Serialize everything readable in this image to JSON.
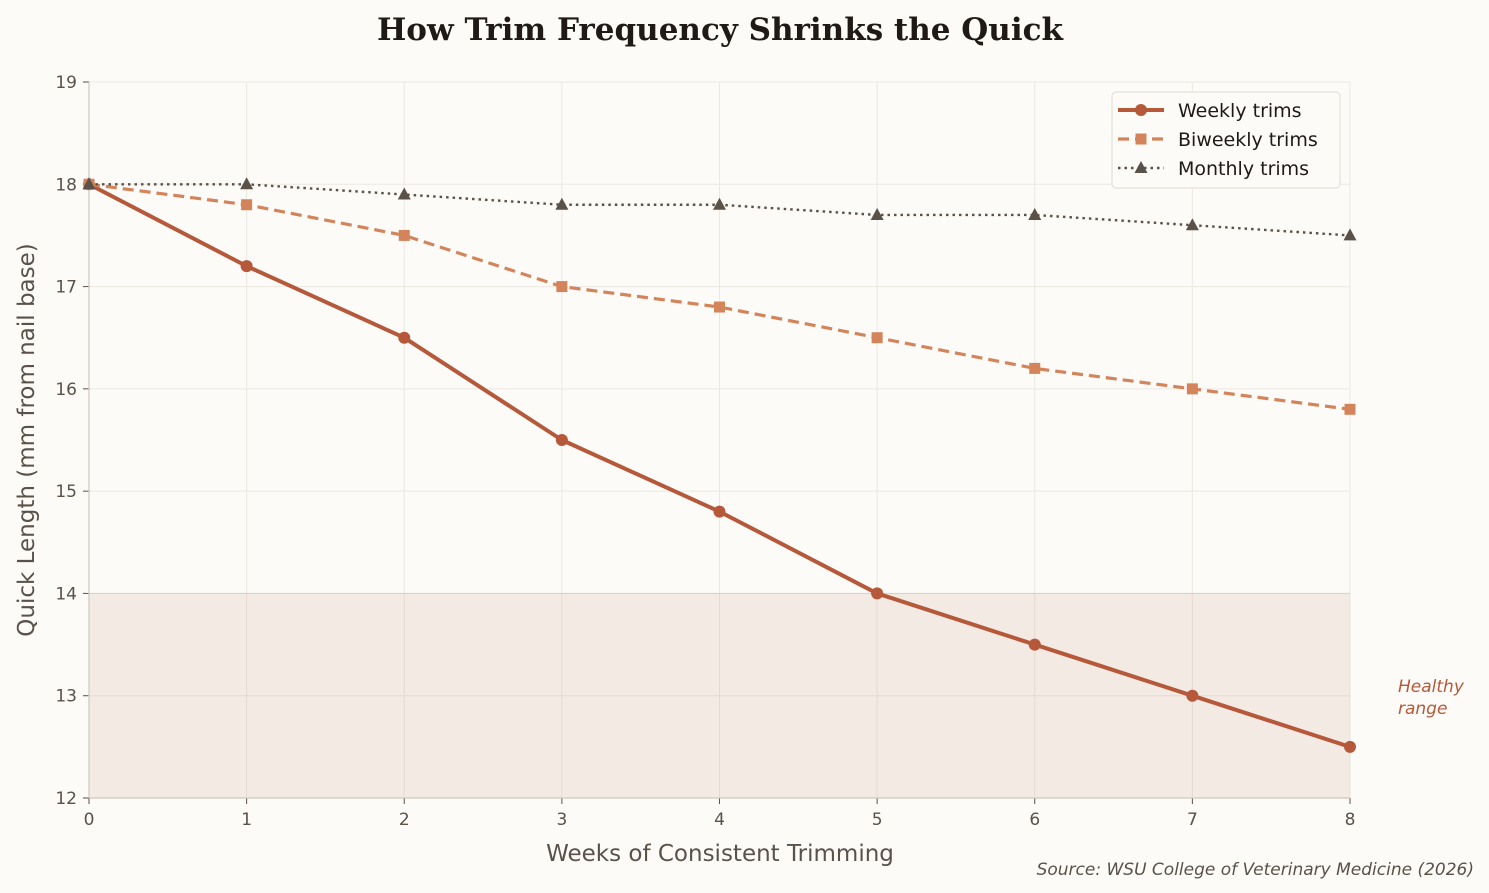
{
  "chart_data": {
    "type": "line",
    "title": "How Trim Frequency Shrinks the Quick",
    "xlabel": "Weeks of Consistent Trimming",
    "ylabel": "Quick Length (mm from nail base)",
    "x": [
      0,
      1,
      2,
      3,
      4,
      5,
      6,
      7,
      8
    ],
    "xlim": [
      0,
      8
    ],
    "ylim": [
      12,
      19
    ],
    "xticks": [
      0,
      1,
      2,
      3,
      4,
      5,
      6,
      7,
      8
    ],
    "yticks": [
      12,
      13,
      14,
      15,
      16,
      17,
      18,
      19
    ],
    "grid": true,
    "legend_position": "top-right",
    "series": [
      {
        "name": "Weekly trims",
        "values": [
          18,
          17.2,
          16.5,
          15.5,
          14.8,
          14.0,
          13.5,
          13.0,
          12.5
        ],
        "color": "#b5593a",
        "style": "solid",
        "marker": "circle"
      },
      {
        "name": "Biweekly trims",
        "values": [
          18,
          17.8,
          17.5,
          17.0,
          16.8,
          16.5,
          16.2,
          16.0,
          15.8
        ],
        "color": "#d4845a",
        "style": "dashed",
        "marker": "square"
      },
      {
        "name": "Monthly trims",
        "values": [
          18,
          18,
          17.9,
          17.8,
          17.8,
          17.7,
          17.7,
          17.6,
          17.5
        ],
        "color": "#5a5148",
        "style": "dotted",
        "marker": "triangle"
      }
    ],
    "band": {
      "from": 12,
      "to": 14,
      "label_line1": "Healthy",
      "label_line2": "range",
      "color": "#b5593a"
    },
    "source": "Source: WSU College of Veterinary Medicine (2026)"
  }
}
